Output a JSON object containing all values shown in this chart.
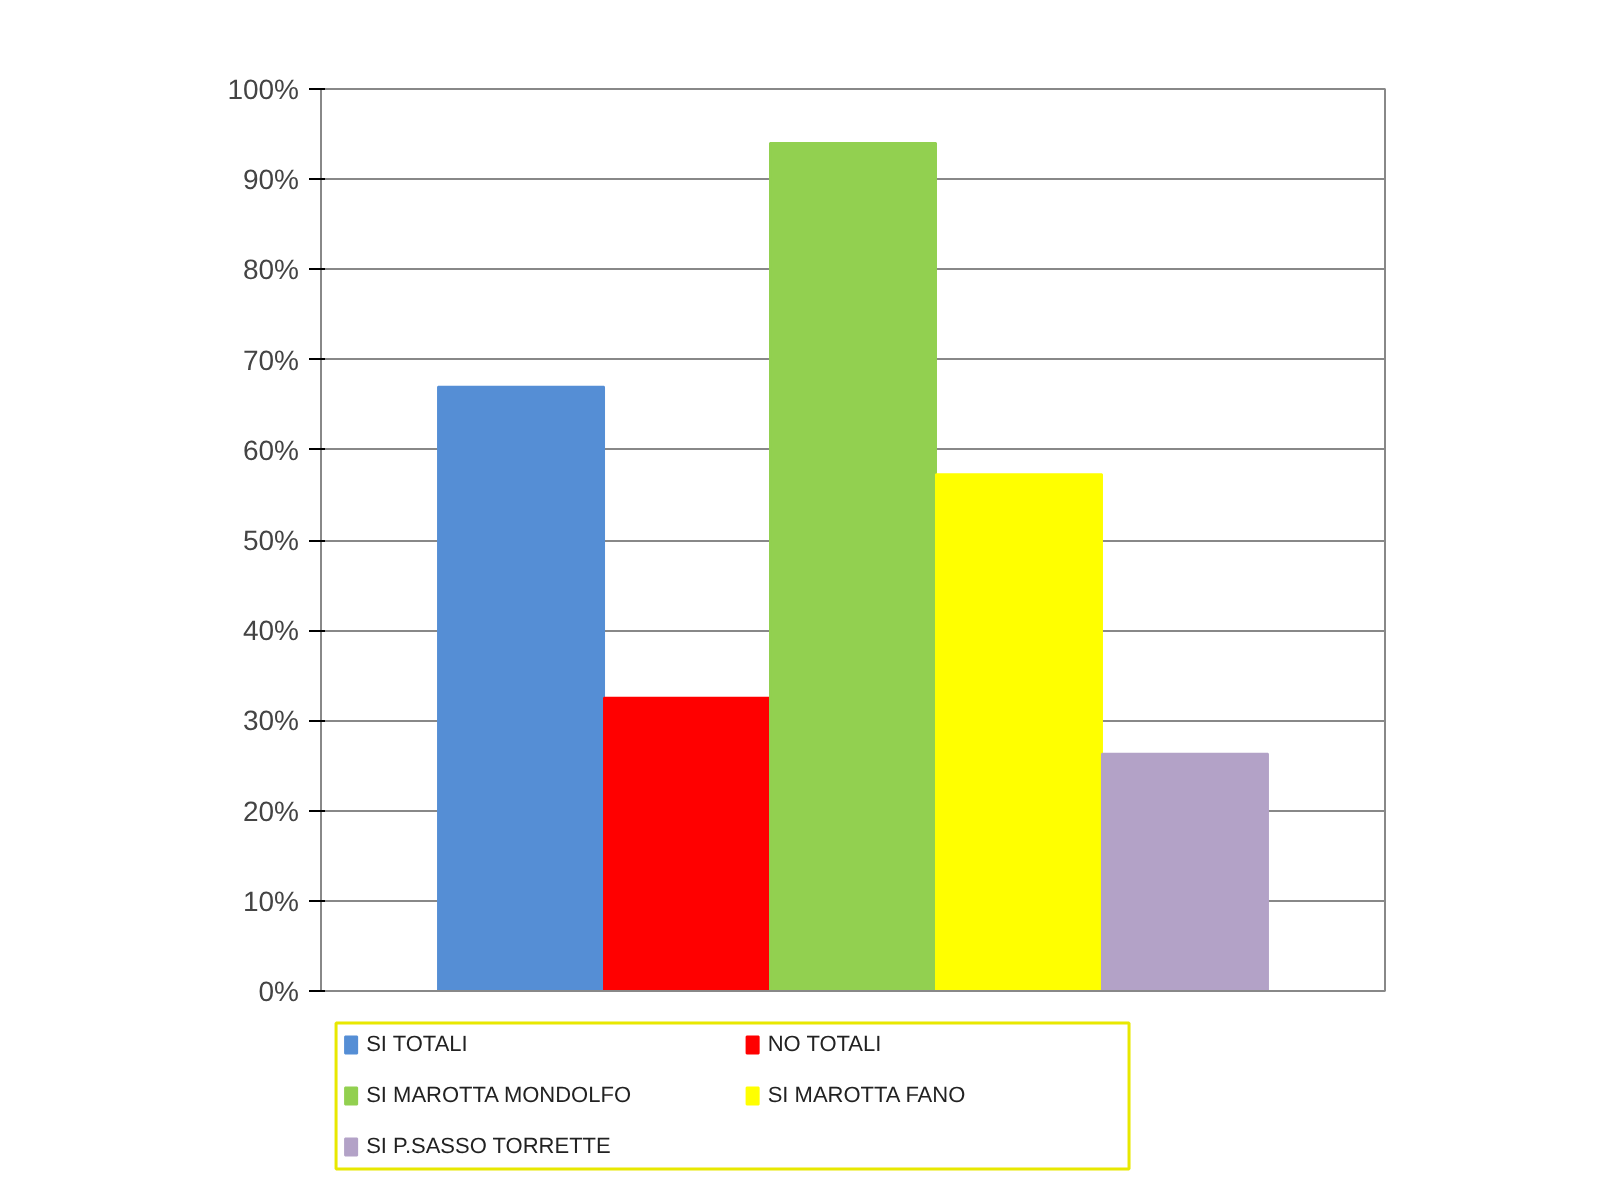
{
  "chart_data": {
    "type": "bar",
    "categories": [
      null
    ],
    "series": [
      {
        "name": "SI TOTALI",
        "color": "#558ed5",
        "values": [
          67
        ]
      },
      {
        "name": "NO TOTALI",
        "color": "#ff0000",
        "values": [
          32.5
        ]
      },
      {
        "name": "SI MAROTTA MONDOLFO",
        "color": "#92d050",
        "values": [
          94
        ]
      },
      {
        "name": "SI MAROTTA FANO",
        "color": "#ffff00",
        "values": [
          57.3
        ]
      },
      {
        "name": "SI P.SASSO TORRETTE",
        "color": "#b3a2c7",
        "values": [
          26.3
        ]
      }
    ],
    "ylim": [
      0,
      100
    ],
    "yticks": [
      {
        "value": 0,
        "label": "0%"
      },
      {
        "value": 10,
        "label": "10%"
      },
      {
        "value": 20,
        "label": "20%"
      },
      {
        "value": 30,
        "label": "30%"
      },
      {
        "value": 40,
        "label": "40%"
      },
      {
        "value": 50,
        "label": "50%"
      },
      {
        "value": 60,
        "label": "60%"
      },
      {
        "value": 70,
        "label": "70%"
      },
      {
        "value": 80,
        "label": "80%"
      },
      {
        "value": 90,
        "label": "90%"
      },
      {
        "value": 100,
        "label": "100%"
      }
    ],
    "grid": "y",
    "legend": "bottom",
    "tick_labels": "y"
  }
}
